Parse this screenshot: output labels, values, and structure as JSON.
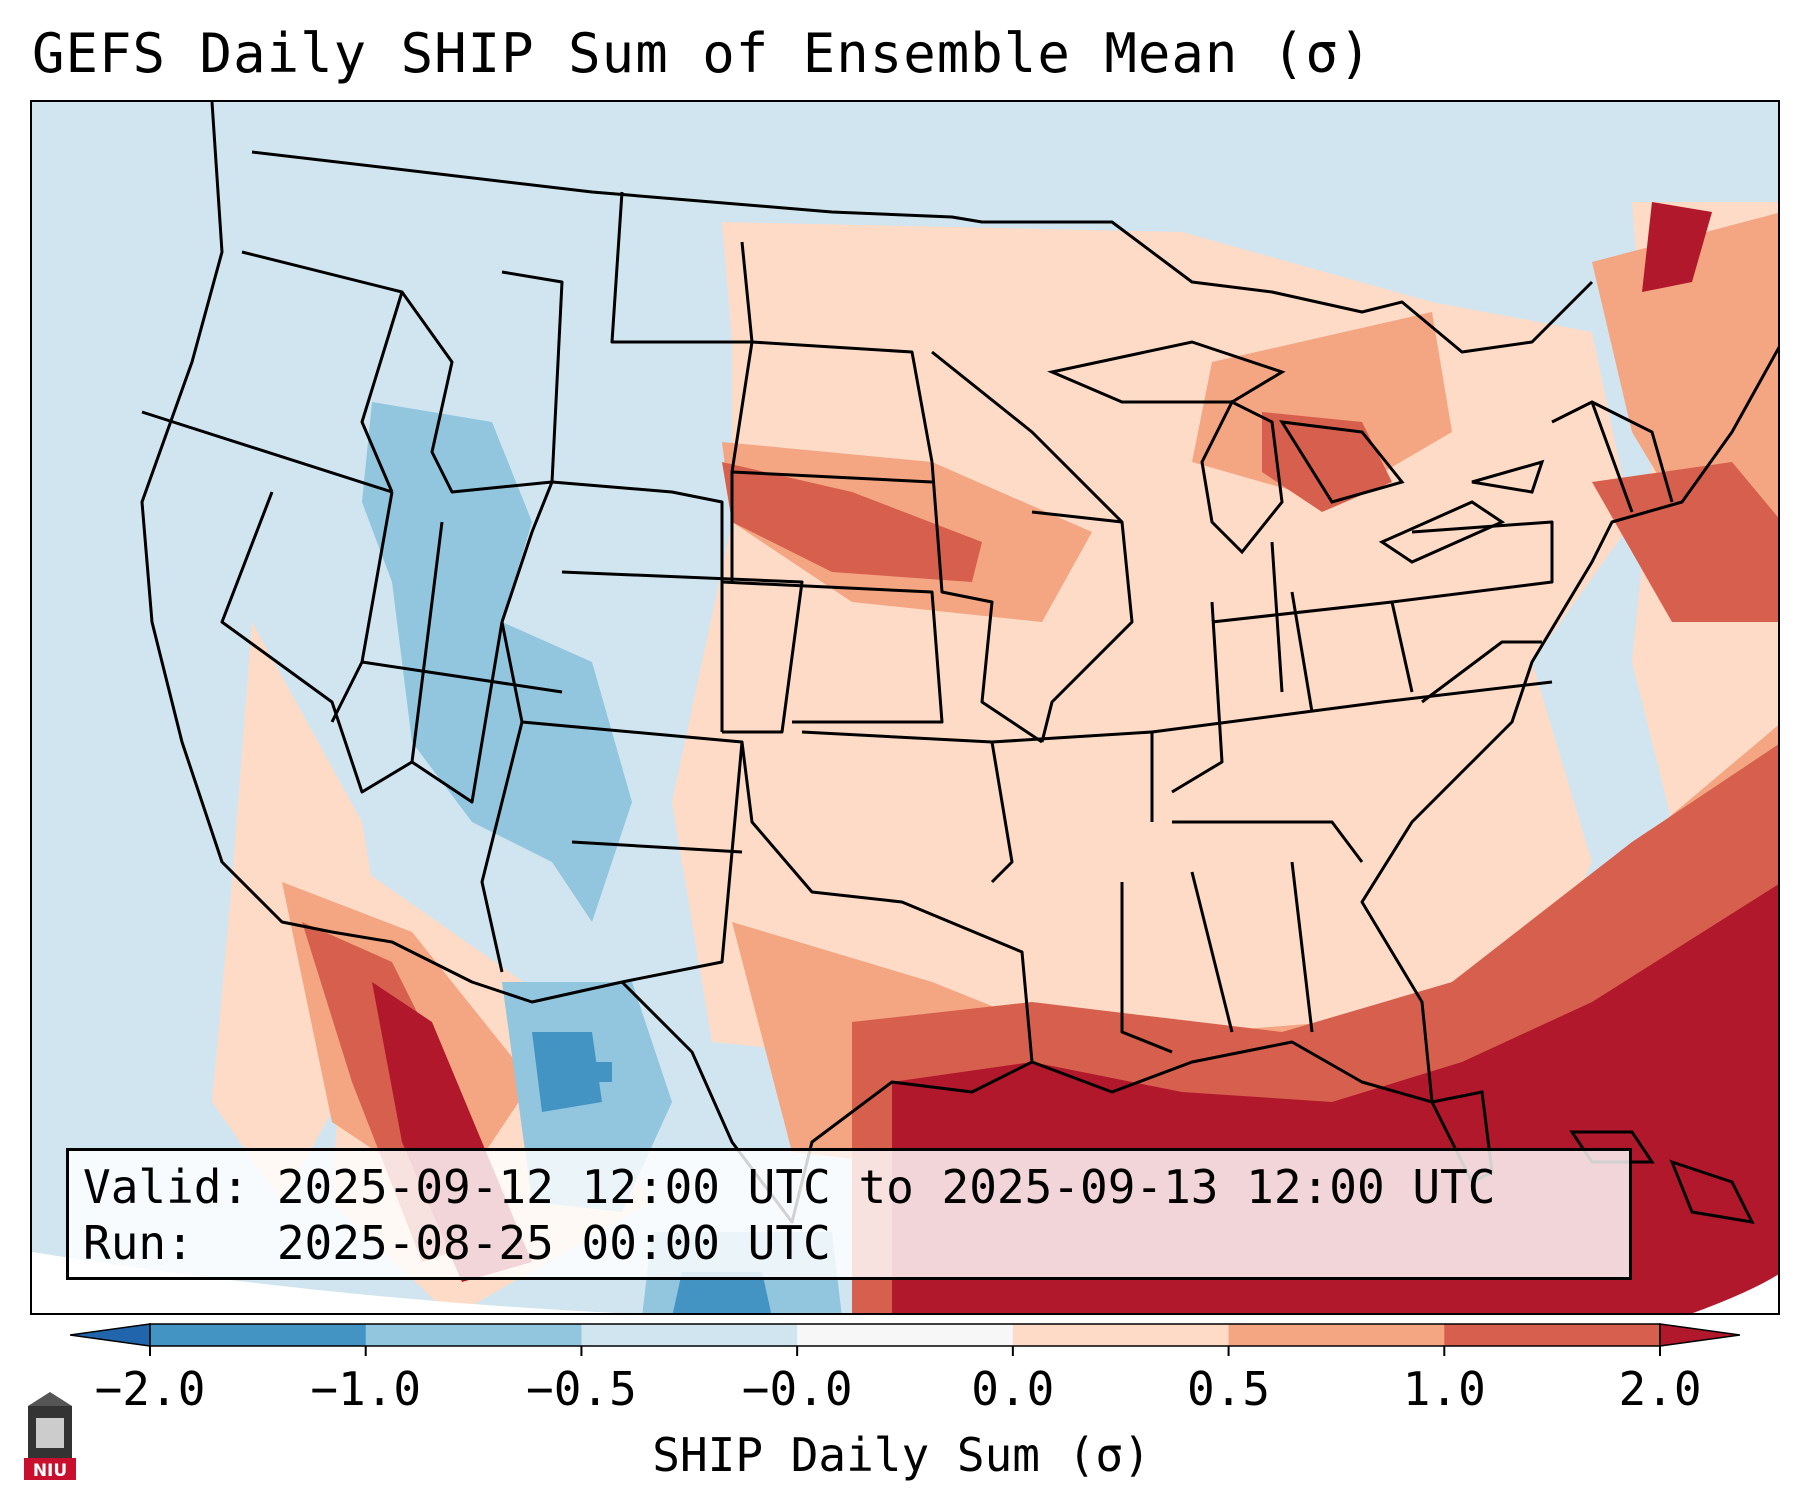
{
  "title": "GEFS Daily SHIP Sum of Ensemble Mean (σ)",
  "info": {
    "valid_line": "Valid: 2025-09-12 12:00 UTC to 2025-09-13 12:00 UTC",
    "run_line": "Run:   2025-08-25 00:00 UTC"
  },
  "colorbar": {
    "label": "SHIP Daily Sum (σ)",
    "ticks": [
      "−2.0",
      "−1.0",
      "−0.5",
      "−0.0",
      "0.0",
      "0.5",
      "1.0",
      "2.0"
    ],
    "bins": [
      {
        "range": "< -2.0",
        "color": "#2166ac"
      },
      {
        "range": "-2.0 to -1.0",
        "color": "#4393c3"
      },
      {
        "range": "-1.0 to -0.5",
        "color": "#92c5de"
      },
      {
        "range": "-0.5 to -0.0",
        "color": "#d1e5f0"
      },
      {
        "range": "-0.0 to 0.0",
        "color": "#f7f7f7"
      },
      {
        "range": "0.0 to 0.5",
        "color": "#fddbc7"
      },
      {
        "range": "0.5 to 1.0",
        "color": "#f4a582"
      },
      {
        "range": "1.0 to 2.0",
        "color": "#d6604d"
      },
      {
        "range": "> 2.0",
        "color": "#b2182b"
      }
    ]
  },
  "map": {
    "region": "Contiguous United States",
    "field": "SHIP daily sum anomaly (sigma)",
    "dominant_pattern": "strongly positive over Gulf of Mexico and western Atlantic; negative over Rockies and Southwest"
  },
  "logo": {
    "text": "NIU",
    "color": "#c8102e"
  }
}
